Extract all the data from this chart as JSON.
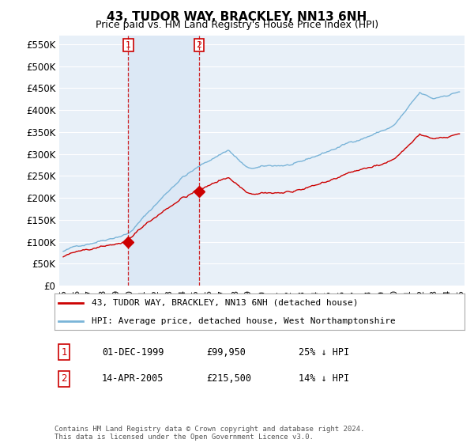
{
  "title": "43, TUDOR WAY, BRACKLEY, NN13 6NH",
  "subtitle": "Price paid vs. HM Land Registry's House Price Index (HPI)",
  "ylabel_ticks": [
    "£0",
    "£50K",
    "£100K",
    "£150K",
    "£200K",
    "£250K",
    "£300K",
    "£350K",
    "£400K",
    "£450K",
    "£500K",
    "£550K"
  ],
  "ytick_values": [
    0,
    50000,
    100000,
    150000,
    200000,
    250000,
    300000,
    350000,
    400000,
    450000,
    500000,
    550000
  ],
  "hpi_color": "#7ab4d8",
  "price_color": "#cc0000",
  "marker_color": "#cc0000",
  "purchase1_date": "01-DEC-1999",
  "purchase1_price": "£99,950",
  "purchase1_pct": "25% ↓ HPI",
  "purchase2_date": "14-APR-2005",
  "purchase2_price": "£215,500",
  "purchase2_pct": "14% ↓ HPI",
  "legend_line1": "43, TUDOR WAY, BRACKLEY, NN13 6NH (detached house)",
  "legend_line2": "HPI: Average price, detached house, West Northamptonshire",
  "footnote": "Contains HM Land Registry data © Crown copyright and database right 2024.\nThis data is licensed under the Open Government Licence v3.0.",
  "background_chart": "#e8f0f8",
  "background_fig": "#ffffff",
  "grid_color": "#ffffff",
  "dashed_line_color": "#cc0000",
  "box_color": "#cc0000",
  "shade_color": "#dce8f5"
}
